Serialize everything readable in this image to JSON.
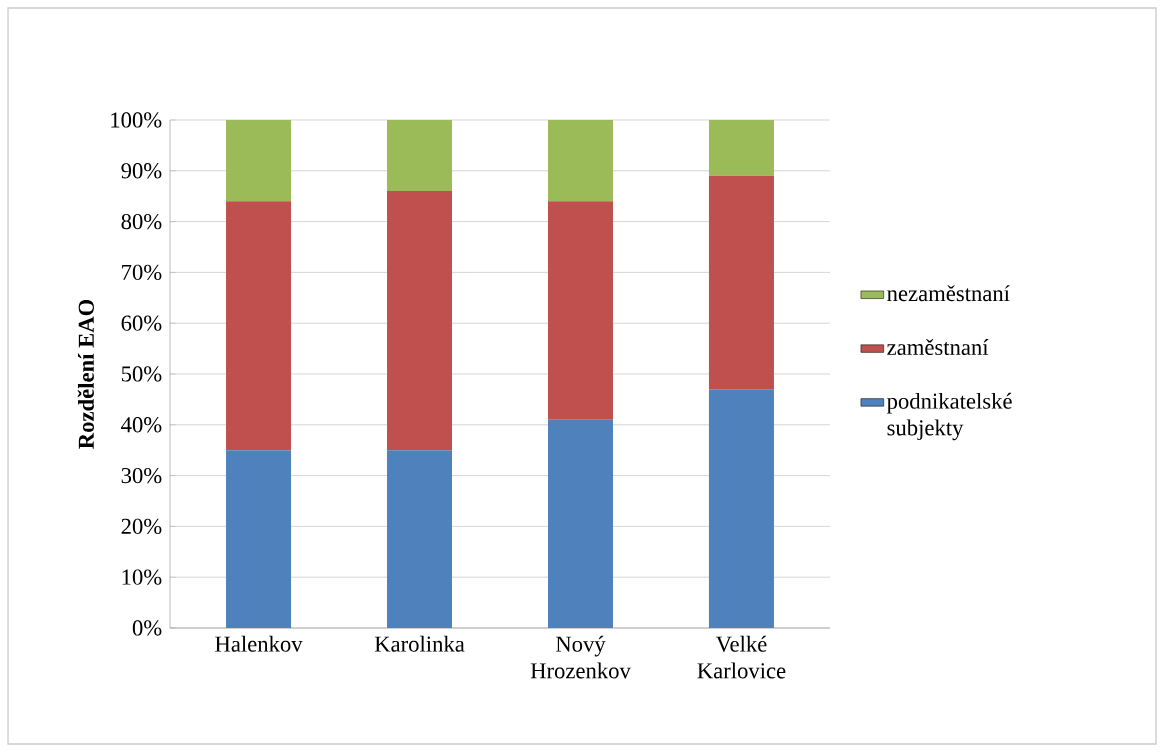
{
  "chart_data": {
    "type": "bar",
    "stacked": true,
    "ylabel": "Rozdělení EAO",
    "categories": [
      "Halenkov",
      "Karolinka",
      "Nový Hrozenkov",
      "Velké Karlovice"
    ],
    "series": [
      {
        "name": "podnikatelské subjekty",
        "color": "#4f81bd",
        "values": [
          35,
          35,
          41,
          47
        ]
      },
      {
        "name": "zaměstnaní",
        "color": "#c0504d",
        "values": [
          49,
          51,
          43,
          42
        ]
      },
      {
        "name": "nezaměstnaní",
        "color": "#9bbb59",
        "values": [
          16,
          14,
          16,
          11
        ]
      }
    ],
    "ylim": [
      0,
      100
    ],
    "yticks": [
      {
        "value": 0,
        "label": "0%"
      },
      {
        "value": 10,
        "label": "10%"
      },
      {
        "value": 20,
        "label": "20%"
      },
      {
        "value": 30,
        "label": "30%"
      },
      {
        "value": 40,
        "label": "40%"
      },
      {
        "value": 50,
        "label": "50%"
      },
      {
        "value": 60,
        "label": "60%"
      },
      {
        "value": 70,
        "label": "70%"
      },
      {
        "value": 80,
        "label": "80%"
      },
      {
        "value": 90,
        "label": "90%"
      },
      {
        "value": 100,
        "label": "100%"
      }
    ],
    "grid": "y",
    "legend": "right"
  }
}
